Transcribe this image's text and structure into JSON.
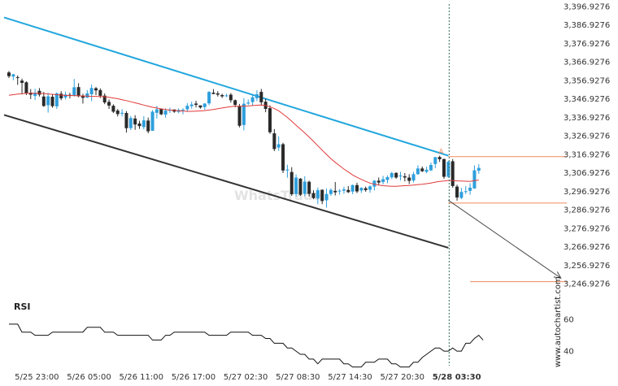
{
  "watermark": "www.autochartist.com",
  "background_logo": "WhatsTrade",
  "colors": {
    "bull": "#2f9fdc",
    "bear": "#2a2a2a",
    "ma": "#e23a3a",
    "resistance": "#22a7dd",
    "support": "#333333",
    "level": "#f08a5d",
    "projection": "#444444",
    "vline": "#2f6f5f",
    "rsi": "#111111"
  },
  "chart_data": [
    {
      "type": "candlestick",
      "y_ticks": [
        "3,396.9276",
        "3,386.9276",
        "3,376.9276",
        "3,366.9276",
        "3,356.9276",
        "3,346.9276",
        "3,336.9276",
        "3,326.9276",
        "3,316.9276",
        "3,306.9276",
        "3,296.9276",
        "3,286.9276",
        "3,276.9276",
        "3,266.9276",
        "3,256.9276",
        "3,246.9276"
      ],
      "ylim": [
        3244.4,
        3398.2
      ],
      "x_ticks": [
        "5/25 23:00",
        "5/26 05:00",
        "5/26 11:00",
        "5/26 17:00",
        "5/27 02:30",
        "5/27 08:30",
        "5/27 14:30",
        "5/27 20:30",
        "5/28 03:30"
      ],
      "x_tick_index": [
        6,
        18,
        30,
        42,
        54,
        66,
        78,
        90,
        102
      ],
      "bold_tick": "5/28 03:30",
      "candles": [
        [
          3361.2,
          3362.0,
          3358.2,
          3359.2
        ],
        [
          3359.0,
          3360.5,
          3357.0,
          3360.2
        ],
        [
          3358.7,
          3359.6,
          3354.5,
          3358.5
        ],
        [
          3356.8,
          3357.9,
          3349.4,
          3355.6
        ],
        [
          3355.9,
          3356.4,
          3349.0,
          3349.9
        ],
        [
          3350.3,
          3352.2,
          3346.8,
          3349.2
        ],
        [
          3348.5,
          3352.4,
          3346.3,
          3350.3
        ],
        [
          3351.3,
          3352.8,
          3348.2,
          3349.2
        ],
        [
          3348.2,
          3350.7,
          3342.6,
          3343.1
        ],
        [
          3343.5,
          3350.2,
          3339.5,
          3348.3
        ],
        [
          3348.1,
          3349.6,
          3342.2,
          3343.0
        ],
        [
          3342.9,
          3350.5,
          3341.5,
          3349.9
        ],
        [
          3349.7,
          3351.1,
          3346.2,
          3347.2
        ],
        [
          3347.7,
          3350.9,
          3346.6,
          3349.3
        ],
        [
          3349.1,
          3350.2,
          3347.2,
          3348.8
        ],
        [
          3348.8,
          3357.7,
          3348.2,
          3353.2
        ],
        [
          3353.3,
          3355.4,
          3347.8,
          3348.3
        ],
        [
          3348.7,
          3349.7,
          3344.4,
          3347.5
        ],
        [
          3347.6,
          3351.7,
          3347.4,
          3349.9
        ],
        [
          3349.4,
          3354.7,
          3345.7,
          3352.8
        ],
        [
          3352.7,
          3353.3,
          3349.0,
          3351.5
        ],
        [
          3351.7,
          3352.6,
          3347.4,
          3348.6
        ],
        [
          3348.7,
          3349.9,
          3344.1,
          3345.0
        ],
        [
          3345.3,
          3346.6,
          3341.5,
          3343.3
        ],
        [
          3343.2,
          3344.0,
          3339.3,
          3340.0
        ],
        [
          3340.6,
          3341.5,
          3337.4,
          3338.7
        ],
        [
          3338.9,
          3341.3,
          3337.4,
          3339.4
        ],
        [
          3339.3,
          3340.3,
          3328.7,
          3331.1
        ],
        [
          3331.1,
          3337.7,
          3330.1,
          3336.6
        ],
        [
          3336.3,
          3338.1,
          3330.2,
          3333.1
        ],
        [
          3333.6,
          3335.1,
          3330.7,
          3332.2
        ],
        [
          3331.7,
          3337.6,
          3330.4,
          3335.3
        ],
        [
          3335.2,
          3336.8,
          3328.3,
          3329.4
        ],
        [
          3329.7,
          3340.9,
          3329.6,
          3340.0
        ],
        [
          3339.4,
          3343.2,
          3336.3,
          3341.3
        ],
        [
          3341.6,
          3341.7,
          3338.1,
          3338.6
        ],
        [
          3338.4,
          3341.8,
          3336.7,
          3340.6
        ],
        [
          3340.5,
          3342.2,
          3339.3,
          3341.1
        ],
        [
          3341.2,
          3341.2,
          3339.4,
          3340.0
        ],
        [
          3339.9,
          3341.8,
          3339.1,
          3340.9
        ],
        [
          3340.9,
          3341.9,
          3338.6,
          3341.1
        ],
        [
          3341.3,
          3344.6,
          3339.9,
          3343.2
        ],
        [
          3343.0,
          3345.4,
          3341.6,
          3343.9
        ],
        [
          3344.4,
          3345.9,
          3342.3,
          3343.7
        ],
        [
          3343.4,
          3343.4,
          3341.6,
          3342.3
        ],
        [
          3342.5,
          3344.6,
          3341.0,
          3344.4
        ],
        [
          3344.5,
          3351.1,
          3343.5,
          3350.7
        ],
        [
          3350.3,
          3352.2,
          3349.4,
          3349.6
        ],
        [
          3349.9,
          3351.1,
          3348.2,
          3349.2
        ],
        [
          3349.0,
          3349.7,
          3347.4,
          3348.3
        ],
        [
          3348.4,
          3349.7,
          3347.9,
          3348.8
        ],
        [
          3349.2,
          3350.1,
          3344.9,
          3346.2
        ],
        [
          3346.2,
          3346.6,
          3342.4,
          3343.7
        ],
        [
          3343.1,
          3344.2,
          3331.5,
          3332.4
        ],
        [
          3332.8,
          3347.3,
          3329.9,
          3344.3
        ],
        [
          3344.4,
          3346.6,
          3343.6,
          3344.9
        ],
        [
          3345.2,
          3349.3,
          3343.2,
          3347.8
        ],
        [
          3347.3,
          3351.6,
          3345.7,
          3349.4
        ],
        [
          3350.7,
          3352.3,
          3343.4,
          3345.1
        ],
        [
          3345.4,
          3347.0,
          3339.7,
          3341.5
        ],
        [
          3341.9,
          3343.4,
          3328.0,
          3328.9
        ],
        [
          3328.3,
          3330.6,
          3318.7,
          3319.8
        ],
        [
          3320.6,
          3326.6,
          3318.8,
          3322.4
        ],
        [
          3322.4,
          3323.2,
          3306.8,
          3308.2
        ],
        [
          3308.2,
          3311.3,
          3304.3,
          3308.7
        ],
        [
          3307.4,
          3310.0,
          3294.5,
          3295.4
        ],
        [
          3295.5,
          3306.1,
          3294.2,
          3304.4
        ],
        [
          3303.8,
          3304.1,
          3294.5,
          3295.1
        ],
        [
          3295.6,
          3305.1,
          3294.3,
          3302.2
        ],
        [
          3302.1,
          3302.7,
          3294.1,
          3295.6
        ],
        [
          3296.0,
          3297.5,
          3292.7,
          3293.3
        ],
        [
          3293.1,
          3299.0,
          3290.0,
          3297.6
        ],
        [
          3297.8,
          3297.9,
          3290.0,
          3291.7
        ],
        [
          3292.1,
          3298.5,
          3288.1,
          3295.5
        ],
        [
          3295.5,
          3298.6,
          3294.5,
          3297.7
        ],
        [
          3297.2,
          3302.0,
          3294.7,
          3296.4
        ],
        [
          3296.9,
          3298.1,
          3295.1,
          3297.3
        ],
        [
          3297.3,
          3299.4,
          3295.7,
          3298.0
        ],
        [
          3297.7,
          3299.8,
          3296.0,
          3296.5
        ],
        [
          3296.8,
          3300.6,
          3295.4,
          3300.3
        ],
        [
          3300.3,
          3301.6,
          3296.0,
          3296.9
        ],
        [
          3297.4,
          3299.2,
          3296.1,
          3298.8
        ],
        [
          3298.6,
          3299.5,
          3296.7,
          3297.6
        ],
        [
          3297.8,
          3300.2,
          3296.2,
          3299.6
        ],
        [
          3299.5,
          3303.0,
          3297.4,
          3302.7
        ],
        [
          3302.7,
          3304.4,
          3300.5,
          3301.7
        ],
        [
          3302.0,
          3305.3,
          3300.7,
          3303.5
        ],
        [
          3303.1,
          3305.6,
          3301.3,
          3304.6
        ],
        [
          3304.5,
          3307.5,
          3303.6,
          3306.8
        ],
        [
          3306.9,
          3307.2,
          3303.7,
          3304.4
        ],
        [
          3305.0,
          3307.5,
          3302.8,
          3305.5
        ],
        [
          3305.1,
          3306.8,
          3302.3,
          3304.4
        ],
        [
          3304.4,
          3306.2,
          3300.9,
          3302.6
        ],
        [
          3302.8,
          3307.5,
          3301.7,
          3306.2
        ],
        [
          3306.2,
          3311.0,
          3305.9,
          3309.3
        ],
        [
          3309.3,
          3310.4,
          3307.4,
          3307.8
        ],
        [
          3307.5,
          3310.3,
          3306.7,
          3308.6
        ],
        [
          3308.3,
          3312.5,
          3307.9,
          3311.2
        ],
        [
          3311.7,
          3315.6,
          3309.5,
          3315.4
        ],
        [
          3315.5,
          3316.2,
          3312.8,
          3314.3
        ],
        [
          3314.4,
          3314.6,
          3303.7,
          3304.8
        ],
        [
          3304.8,
          3313.4,
          3304.3,
          3312.9
        ],
        [
          3313.2,
          3314.4,
          3298.9,
          3299.8
        ],
        [
          3299.5,
          3300.5,
          3291.9,
          3293.6
        ],
        [
          3293.4,
          3298.8,
          3292.7,
          3296.6
        ],
        [
          3296.8,
          3299.8,
          3295.5,
          3297.0
        ],
        [
          3297.2,
          3301.3,
          3295.1,
          3298.9
        ],
        [
          3298.5,
          3311.0,
          3298.3,
          3308.3
        ],
        [
          3308.1,
          3311.6,
          3306.4,
          3309.6
        ]
      ],
      "moving_average": [
        3348.9,
        3349.2,
        3349.5,
        3349.7,
        3350.0,
        3350.0,
        3350.0,
        3349.9,
        3349.8,
        3349.6,
        3349.4,
        3349.2,
        3349.0,
        3348.8,
        3348.7,
        3348.7,
        3348.6,
        3348.5,
        3348.4,
        3348.3,
        3348.3,
        3348.2,
        3348.1,
        3347.8,
        3347.4,
        3347.0,
        3346.5,
        3346.0,
        3345.4,
        3344.8,
        3344.2,
        3343.6,
        3343.0,
        3342.4,
        3342.0,
        3341.5,
        3341.2,
        3340.9,
        3340.7,
        3340.5,
        3340.3,
        3340.2,
        3340.2,
        3340.3,
        3340.4,
        3340.6,
        3340.9,
        3341.2,
        3341.6,
        3342.0,
        3342.4,
        3342.7,
        3343.0,
        3342.9,
        3343.0,
        3343.1,
        3343.3,
        3343.5,
        3343.6,
        3343.4,
        3342.7,
        3341.7,
        3340.5,
        3338.7,
        3336.9,
        3334.8,
        3332.7,
        3330.6,
        3328.5,
        3326.3,
        3324.0,
        3321.6,
        3319.2,
        3316.9,
        3314.6,
        3312.6,
        3310.8,
        3309.0,
        3307.4,
        3305.8,
        3304.5,
        3303.4,
        3302.3,
        3301.4,
        3300.8,
        3300.3,
        3300.0,
        3299.8,
        3299.7,
        3299.7,
        3299.8,
        3300.0,
        3300.1,
        3300.3,
        3300.6,
        3300.8,
        3301.1,
        3301.4,
        3301.9,
        3302.3,
        3302.5,
        3302.8,
        3302.8,
        3302.6,
        3302.5,
        3302.4,
        3302.3,
        3302.7,
        3303.0
      ],
      "resistance_line": {
        "from": [
          0,
          3390.3
        ],
        "to": [
          101,
          3316.2
        ]
      },
      "support_line": {
        "from": [
          0,
          3337.6
        ],
        "to": [
          101,
          3266.4
        ]
      },
      "vertical_marker_index": 101,
      "pattern_point_label": "A",
      "levels": [
        {
          "from_index": 101,
          "to_index": 126,
          "value": 3315.7
        },
        {
          "from_index": 101,
          "to_index": 126,
          "value": 3290.6
        },
        {
          "from_index": 106,
          "to_index": 126,
          "value": 3248.1
        }
      ],
      "projection_arrow": {
        "from": [
          101,
          3292.1
        ],
        "to": [
          125,
          3250.0
        ]
      }
    },
    {
      "type": "line",
      "title": "RSI",
      "y_ticks": [
        "60",
        "40"
      ],
      "ylim": [
        25.7,
        74.4
      ],
      "values": [
        57,
        57,
        57,
        52,
        52,
        52,
        50,
        50,
        50,
        50,
        52,
        52,
        52,
        52,
        52,
        52,
        52,
        52,
        55,
        55,
        55,
        55,
        52,
        52,
        52,
        50,
        50,
        50,
        50,
        50,
        50,
        50,
        50,
        47,
        47,
        47,
        50,
        50,
        52,
        52,
        52,
        52,
        52,
        52,
        52,
        52,
        50,
        50,
        50,
        50,
        50,
        52,
        52,
        52,
        52,
        52,
        50,
        50,
        50,
        48,
        48,
        45,
        45,
        45,
        42,
        42,
        40,
        38,
        38,
        35,
        35,
        32,
        35,
        35,
        35,
        35,
        35,
        32,
        32,
        30,
        30,
        30,
        33,
        33,
        33,
        35,
        35,
        35,
        32,
        32,
        30,
        30,
        30,
        33,
        33,
        36,
        38,
        40,
        42,
        42,
        40,
        40,
        42,
        40,
        40,
        45,
        45,
        48,
        50,
        47
      ]
    }
  ]
}
